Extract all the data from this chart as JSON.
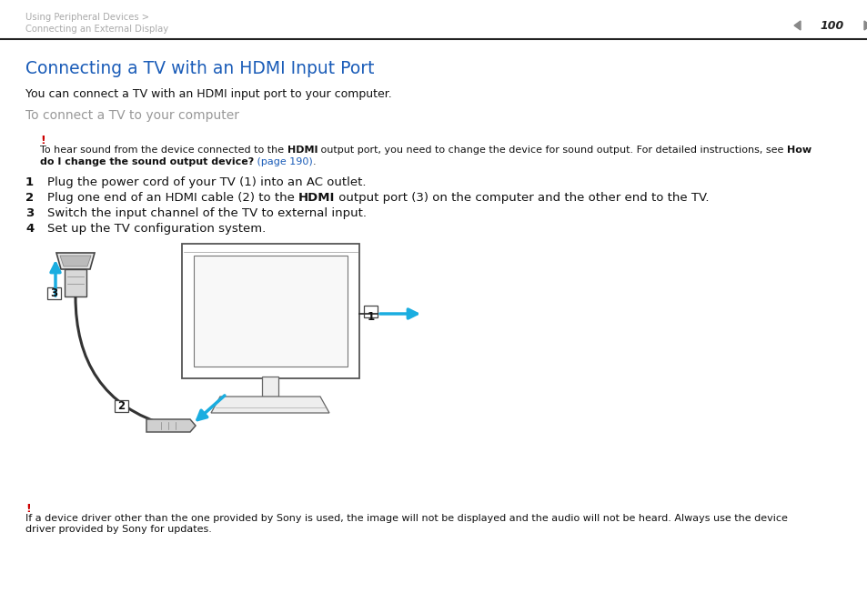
{
  "bg_color": "#ffffff",
  "header1": "Using Peripheral Devices >",
  "header2": "Connecting an External Display",
  "header_color": "#aaaaaa",
  "page_num": "100",
  "title": "Connecting a TV with an HDMI Input Port",
  "title_color": "#1a5cb8",
  "subtitle": "You can connect a TV with an HDMI input port to your computer.",
  "section_head": "To connect a TV to your computer",
  "section_head_color": "#999999",
  "warn_color": "#cc0000",
  "link_color": "#1a5cb8",
  "text_color": "#111111",
  "arrow_color": "#1aade0",
  "diag_color": "#444444",
  "step1": "Plug the power cord of your TV (1) into an AC outlet.",
  "step2_a": "Plug one end of an HDMI cable (2) to the ",
  "step2_b": "HDMI",
  "step2_c": " output port (3) on the computer and the other end to the TV.",
  "step3": "Switch the input channel of the TV to external input.",
  "step4": "Set up the TV configuration system.",
  "warn1_a": "To hear sound from the device connected to the ",
  "warn1_b": "HDMI",
  "warn1_c": " output port, you need to change the device for sound output. For detailed instructions, see ",
  "warn1_d": "How",
  "warn2_a": "do I change the sound output device?",
  "warn2_b": " (page 190)",
  "warn2_c": ".",
  "foot1": "If a device driver other than the one provided by Sony is used, the image will not be displayed and the audio will not be heard. Always use the device",
  "foot2": "driver provided by Sony for updates."
}
